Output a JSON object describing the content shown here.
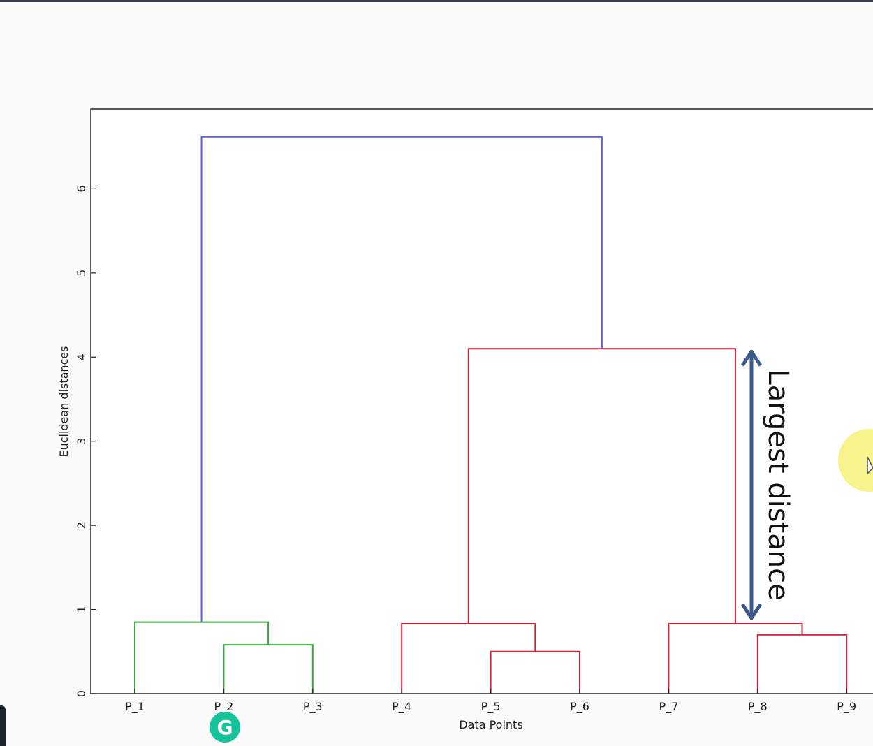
{
  "chart_data": {
    "type": "dendrogram",
    "title": "",
    "xlabel": "Data Points",
    "ylabel": "Euclidean distances",
    "ylim": [
      0,
      6.95
    ],
    "yticks": [
      0,
      1,
      2,
      3,
      4,
      5,
      6
    ],
    "leaves": [
      "P_1",
      "P_2",
      "P_3",
      "P_4",
      "P_5",
      "P_6",
      "P_7",
      "P_8",
      "P_9"
    ],
    "merges": [
      {
        "left": "P_2",
        "right": "P_3",
        "height": 0.58,
        "color": "#3aa63a"
      },
      {
        "left": "P_1",
        "right": "(P_2,P_3)",
        "height": 0.85,
        "color": "#3aa63a"
      },
      {
        "left": "P_5",
        "right": "P_6",
        "height": 0.5,
        "color": "#d4213c"
      },
      {
        "left": "P_4",
        "right": "(P_5,P_6)",
        "height": 0.83,
        "color": "#d4213c"
      },
      {
        "left": "P_8",
        "right": "P_9",
        "height": 0.7,
        "color": "#d4213c"
      },
      {
        "left": "P_7",
        "right": "(P_8,P_9)",
        "height": 0.83,
        "color": "#d4213c"
      },
      {
        "left": "(P_4,P_5,P_6)",
        "right": "(P_7,P_8,P_9)",
        "height": 4.1,
        "color": "#d4213c"
      },
      {
        "left": "(P_1,P_2,P_3)",
        "right": "(P_4..P_9)",
        "height": 6.62,
        "color": "#5b5bf0"
      }
    ],
    "annotation": {
      "text": "Largest distance",
      "from": 0.83,
      "to": 4.1,
      "color": "#3b5a8c"
    }
  },
  "overlay": {
    "badge_letter": "G"
  }
}
